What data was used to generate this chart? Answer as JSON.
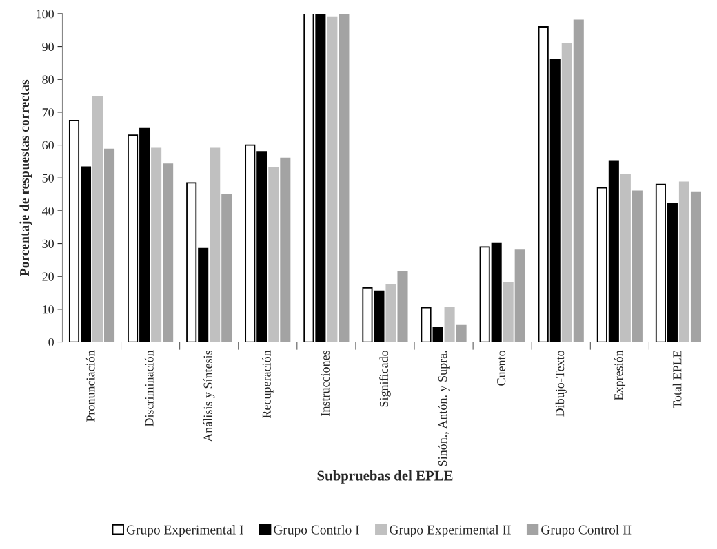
{
  "chart_data": {
    "type": "bar",
    "xlabel": "Subpruebas del EPLE",
    "ylabel": "Porcentaje de respuestas correctas",
    "categories": [
      "Pronunciación",
      "Discriminación",
      "Análisis y Síntesis",
      "Recuperación",
      "Instrucciones",
      "Significado",
      "Sinón., Antón. y Supra.",
      "Cuento",
      "Dibujo-Texto",
      "Expresión",
      "Total EPLE"
    ],
    "series": [
      {
        "name": "Grupo Experimental I",
        "color": "#ffffff",
        "values": [
          67.5,
          63,
          48.5,
          60,
          100,
          16.5,
          10.5,
          29,
          96,
          47,
          48
        ]
      },
      {
        "name": "Grupo Contrlo I",
        "color": "#000000",
        "values": [
          53.3,
          65,
          28.5,
          58,
          100,
          15.5,
          4.5,
          30,
          86,
          55,
          42.3
        ]
      },
      {
        "name": "Grupo Experimental II",
        "color": "#c0c0c0",
        "values": [
          74.7,
          59,
          59,
          53,
          99,
          17.5,
          10.5,
          18,
          91,
          51,
          48.7
        ]
      },
      {
        "name": "Grupo Control II",
        "color": "#a3a3a3",
        "values": [
          58.7,
          54.2,
          45,
          56,
          100,
          21.5,
          5,
          28,
          98,
          46,
          45.5
        ]
      }
    ],
    "ylim": [
      0,
      100
    ],
    "yticks": [
      0,
      10,
      20,
      30,
      40,
      50,
      60,
      70,
      80,
      90,
      100
    ],
    "grid": false,
    "legend": "bottom"
  }
}
